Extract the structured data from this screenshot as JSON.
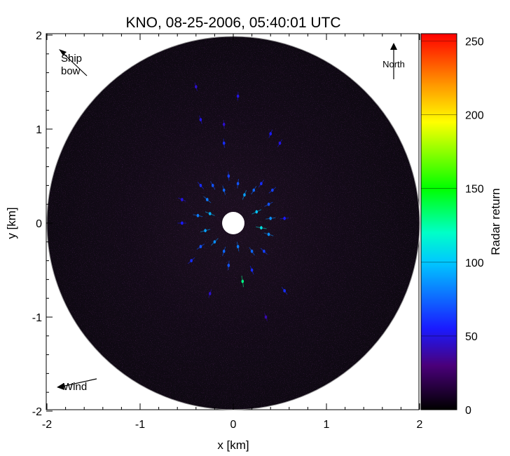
{
  "chart_data": {
    "type": "heatmap",
    "title": "KNO, 08-25-2006, 05:40:01 UTC",
    "xlabel": "x [km]",
    "ylabel": "y [km]",
    "xlim": [
      -2,
      2
    ],
    "ylim": [
      -2,
      2
    ],
    "x_ticks": [
      -2,
      -1,
      0,
      1,
      2
    ],
    "x_tick_labels": [
      "-2",
      "-1",
      "0",
      "1",
      "2"
    ],
    "y_ticks": [
      -2,
      -1,
      0,
      1,
      2
    ],
    "y_tick_labels": [
      "-2",
      "-1",
      "0",
      "1",
      "2"
    ],
    "plot_radius_km": 2,
    "blanked_center_radius_km": 0.12,
    "colorbar": {
      "label": "Radar return",
      "range": [
        0,
        255
      ],
      "ticks": [
        0,
        50,
        100,
        150,
        200,
        250
      ],
      "tick_labels": [
        "0",
        "50",
        "100",
        "150",
        "200",
        "250"
      ],
      "colormap": "rainbow",
      "colormap_stops": [
        {
          "v": 0,
          "color": "#000000"
        },
        {
          "v": 30,
          "color": "#4a007a"
        },
        {
          "v": 55,
          "color": "#1a1aff"
        },
        {
          "v": 100,
          "color": "#00c8ff"
        },
        {
          "v": 120,
          "color": "#00ffc8"
        },
        {
          "v": 150,
          "color": "#00ff00"
        },
        {
          "v": 195,
          "color": "#ffff00"
        },
        {
          "v": 220,
          "color": "#ff9900"
        },
        {
          "v": 255,
          "color": "#ff0000"
        }
      ]
    },
    "annotations": [
      {
        "text_lines": [
          "Ship",
          "bow"
        ],
        "type": "arrow",
        "position": "top-left"
      },
      {
        "text_lines": [
          "North"
        ],
        "type": "arrow",
        "position": "top-right"
      },
      {
        "text_lines": [
          "Wind"
        ],
        "type": "arrow",
        "position": "bottom-left"
      }
    ],
    "bright_returns": [
      {
        "x": -0.35,
        "y": 0.4,
        "value": 60
      },
      {
        "x": -0.28,
        "y": 0.25,
        "value": 80
      },
      {
        "x": -0.22,
        "y": 0.4,
        "value": 70
      },
      {
        "x": -0.1,
        "y": 0.35,
        "value": 75
      },
      {
        "x": -0.05,
        "y": 0.5,
        "value": 65
      },
      {
        "x": 0.05,
        "y": 0.42,
        "value": 70
      },
      {
        "x": 0.12,
        "y": 0.3,
        "value": 90
      },
      {
        "x": 0.22,
        "y": 0.35,
        "value": 75
      },
      {
        "x": 0.3,
        "y": 0.42,
        "value": 60
      },
      {
        "x": 0.38,
        "y": 0.2,
        "value": 70
      },
      {
        "x": 0.42,
        "y": 0.35,
        "value": 65
      },
      {
        "x": -0.38,
        "y": 0.08,
        "value": 80
      },
      {
        "x": -0.25,
        "y": 0.1,
        "value": 95
      },
      {
        "x": 0.25,
        "y": 0.12,
        "value": 100
      },
      {
        "x": 0.4,
        "y": 0.05,
        "value": 85
      },
      {
        "x": -0.3,
        "y": -0.08,
        "value": 90
      },
      {
        "x": 0.3,
        "y": -0.05,
        "value": 110
      },
      {
        "x": 0.38,
        "y": -0.12,
        "value": 85
      },
      {
        "x": -0.35,
        "y": -0.25,
        "value": 70
      },
      {
        "x": -0.2,
        "y": -0.2,
        "value": 85
      },
      {
        "x": -0.1,
        "y": -0.3,
        "value": 75
      },
      {
        "x": 0.05,
        "y": -0.25,
        "value": 80
      },
      {
        "x": 0.2,
        "y": -0.3,
        "value": 75
      },
      {
        "x": 0.33,
        "y": -0.3,
        "value": 65
      },
      {
        "x": -0.45,
        "y": -0.4,
        "value": 60
      },
      {
        "x": -0.05,
        "y": -0.45,
        "value": 70
      },
      {
        "x": 0.2,
        "y": -0.5,
        "value": 60
      },
      {
        "x": 0.1,
        "y": -0.62,
        "value": 130
      },
      {
        "x": -0.55,
        "y": 0.0,
        "value": 55
      },
      {
        "x": 0.55,
        "y": 0.05,
        "value": 55
      },
      {
        "x": -0.1,
        "y": 0.85,
        "value": 60
      },
      {
        "x": 0.05,
        "y": 1.35,
        "value": 50
      },
      {
        "x": -0.35,
        "y": 1.1,
        "value": 50
      },
      {
        "x": 0.4,
        "y": 0.95,
        "value": 55
      },
      {
        "x": 0.5,
        "y": 0.85,
        "value": 50
      },
      {
        "x": 0.55,
        "y": -0.72,
        "value": 60
      },
      {
        "x": -0.4,
        "y": 1.45,
        "value": 45
      },
      {
        "x": -0.1,
        "y": 1.05,
        "value": 45
      },
      {
        "x": -0.55,
        "y": 0.25,
        "value": 50
      },
      {
        "x": -0.25,
        "y": -0.75,
        "value": 45
      },
      {
        "x": 0.35,
        "y": -1.0,
        "value": 40
      }
    ]
  }
}
